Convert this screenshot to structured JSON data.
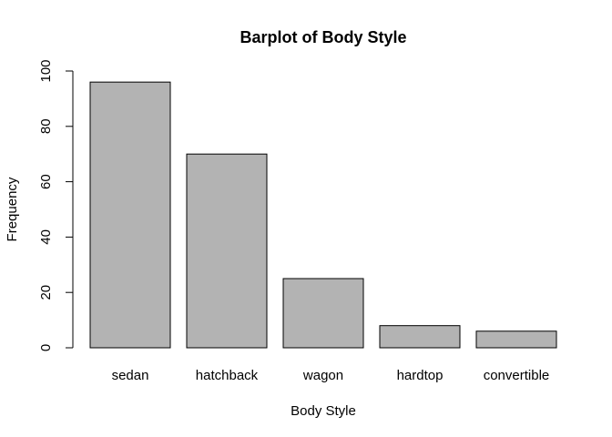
{
  "chart_data": {
    "type": "bar",
    "title": "Barplot of Body Style",
    "xlabel": "Body Style",
    "ylabel": "Frequency",
    "categories": [
      "sedan",
      "hatchback",
      "wagon",
      "hardtop",
      "convertible"
    ],
    "values": [
      96,
      70,
      25,
      8,
      6
    ],
    "ylim": [
      0,
      100
    ],
    "yticks": [
      "0",
      "20",
      "40",
      "60",
      "80",
      "100"
    ],
    "grid": false,
    "legend": "none",
    "bar_color": "#b3b3b3",
    "border_color": "#000000"
  }
}
